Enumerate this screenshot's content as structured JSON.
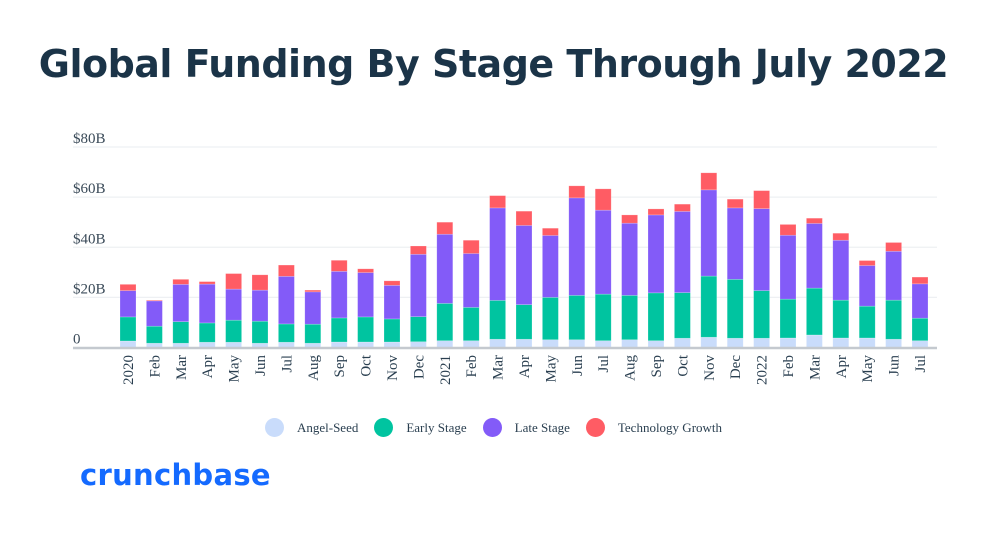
{
  "header": {
    "title": "Global Funding By Stage Through July 2022"
  },
  "branding": {
    "logo_text": "crunchbase",
    "logo_color": "#146aff"
  },
  "chart_data": {
    "type": "bar",
    "stacked": true,
    "title": "Global Funding By Stage Through July 2022",
    "xlabel": "",
    "ylabel": "",
    "ylim": [
      0,
      80
    ],
    "yticks": [
      0,
      20,
      40,
      60,
      80
    ],
    "ytick_labels": [
      "0",
      "$20B",
      "$40B",
      "$60B",
      "$80B"
    ],
    "grid": true,
    "legend_position": "bottom",
    "categories": [
      "2020",
      "Feb",
      "Mar",
      "Apr",
      "May",
      "Jun",
      "Jul",
      "Aug",
      "Sep",
      "Oct",
      "Nov",
      "Dec",
      "2021",
      "Feb",
      "Mar",
      "Apr",
      "May",
      "Jun",
      "Jul",
      "Aug",
      "Sep",
      "Oct",
      "Nov",
      "Dec",
      "2022",
      "Feb",
      "Mar",
      "Apr",
      "May",
      "Jun",
      "Jul"
    ],
    "series": [
      {
        "name": "Angel-Seed",
        "color": "#c9dcfb",
        "values": [
          2.6,
          1.7,
          1.7,
          2.1,
          2.1,
          1.7,
          2.1,
          1.7,
          2.2,
          2.2,
          2.2,
          2.3,
          2.7,
          2.7,
          3.3,
          3.3,
          3.1,
          3.1,
          2.7,
          3.1,
          2.7,
          3.7,
          4.1,
          3.7,
          3.7,
          3.8,
          5.0,
          3.8,
          3.8,
          3.3,
          2.7
        ]
      },
      {
        "name": "Early Stage",
        "color": "#00c4a0",
        "values": [
          9.6,
          6.8,
          8.6,
          7.7,
          8.8,
          8.8,
          7.3,
          7.6,
          9.6,
          10.0,
          9.2,
          10.0,
          14.9,
          13.3,
          15.5,
          13.8,
          16.9,
          17.7,
          18.6,
          17.7,
          19.1,
          18.2,
          24.4,
          23.5,
          19.0,
          15.5,
          18.7,
          15.1,
          12.7,
          15.6,
          9.0
        ]
      },
      {
        "name": "Late Stage",
        "color": "#835bf8",
        "values": [
          10.5,
          10.1,
          14.9,
          15.5,
          12.4,
          12.4,
          19.0,
          12.9,
          18.6,
          17.7,
          13.4,
          24.9,
          27.6,
          21.5,
          36.9,
          31.6,
          24.7,
          38.9,
          33.5,
          28.8,
          31.1,
          32.4,
          34.4,
          28.5,
          32.7,
          25.5,
          25.8,
          23.9,
          16.2,
          19.5,
          13.7
        ]
      },
      {
        "name": "Technology Growth",
        "color": "#ff5c64",
        "values": [
          2.5,
          0.3,
          2.0,
          1.0,
          6.2,
          6.1,
          4.5,
          0.7,
          4.4,
          1.5,
          1.8,
          3.3,
          4.8,
          5.3,
          4.9,
          5.7,
          2.9,
          4.8,
          8.5,
          3.3,
          2.4,
          2.9,
          6.8,
          3.5,
          7.2,
          4.3,
          2.1,
          2.8,
          2.0,
          3.5,
          2.7
        ]
      }
    ]
  }
}
